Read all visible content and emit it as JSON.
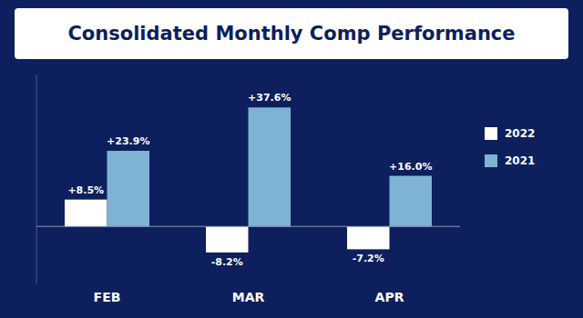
{
  "chart_data": {
    "type": "bar",
    "title": "Consolidated Monthly Comp Performance",
    "categories": [
      "FEB",
      "MAR",
      "APR"
    ],
    "series": [
      {
        "name": "2022",
        "color": "#ffffff",
        "values": [
          8.5,
          -8.2,
          -7.2
        ],
        "value_labels": [
          "+8.5%",
          "-8.2%",
          "-7.2%"
        ]
      },
      {
        "name": "2021",
        "color": "#7fb3d3",
        "values": [
          23.9,
          37.6,
          16.0
        ],
        "value_labels": [
          "+23.9%",
          "+37.6%",
          "+16.0%"
        ]
      }
    ],
    "ylim": [
      -18,
      48
    ],
    "data_labels": true,
    "tick_labels": "x",
    "legend": "right"
  }
}
